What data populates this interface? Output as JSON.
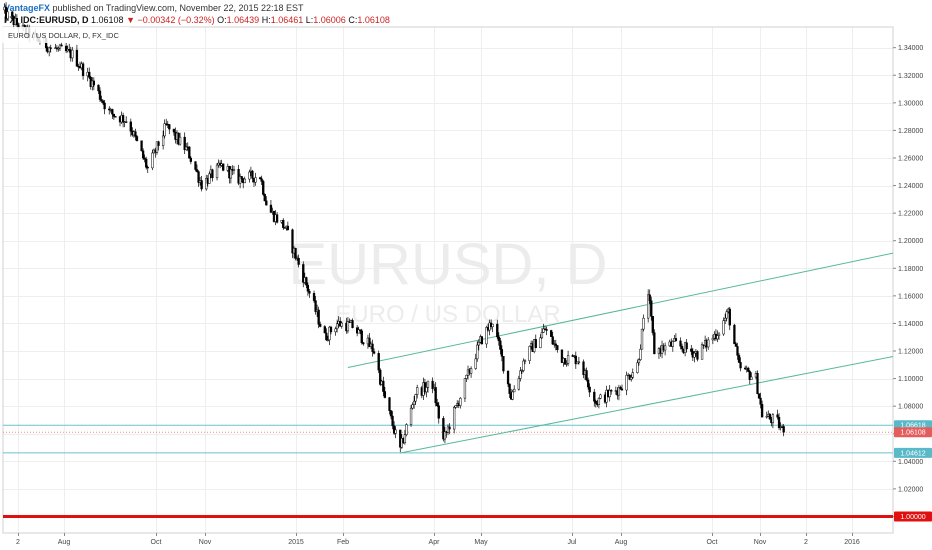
{
  "header": {
    "publisher": "VantageFX",
    "published_text": "published on TradingView.com, November 22, 2015 22:18 EST",
    "symbol": "FX_IDC:EURUSD, D",
    "last": "1.06108",
    "change_arrow": "▼",
    "change": "−0.00342 (−0.32%)",
    "o_label": "O:",
    "o_value": "1.06439",
    "h_label": "H:",
    "h_value": "1.06461",
    "l_label": "L:",
    "l_value": "1.06006",
    "c_label": "C:",
    "c_value": "1.06108"
  },
  "chart_data": {
    "type": "candlestick",
    "title": "EURO / US DOLLAR, D, FX_IDC",
    "watermark": "EURUSD, D",
    "watermark_sub": "EURO / US DOLLAR",
    "ylim": [
      0.988,
      1.355
    ],
    "y_ticks": [
      "1.34000",
      "1.32000",
      "1.30000",
      "1.28000",
      "1.26000",
      "1.24000",
      "1.22000",
      "1.20000",
      "1.18000",
      "1.16000",
      "1.14000",
      "1.12000",
      "1.10000",
      "1.08000",
      "1.06000",
      "1.04000",
      "1.02000",
      "1.00000"
    ],
    "x_labels": [
      "2",
      "Aug",
      "Oct",
      "Nov",
      "2015",
      "Feb",
      "Apr",
      "May",
      "Jul",
      "Aug",
      "Oct",
      "Nov",
      "2",
      "2016"
    ],
    "price_badges": [
      {
        "label": "1.06618",
        "value": 1.06618,
        "color": "#5ab9c8"
      },
      {
        "label": "1.06108",
        "value": 1.06108,
        "color": "#e55c5c"
      },
      {
        "label": "1.04612",
        "value": 1.04612,
        "color": "#5ab9c8"
      },
      {
        "label": "1.00000",
        "value": 1.0,
        "color": "#e01010"
      }
    ],
    "horizontal_lines": [
      {
        "value": 1.06618,
        "color": "#6cc3d0",
        "kind": "support"
      },
      {
        "value": 1.04612,
        "color": "#6cc3d0",
        "kind": "support"
      },
      {
        "value": 1.0,
        "color": "#e01010",
        "kind": "parity"
      }
    ],
    "channel": {
      "upper": [
        {
          "date": "2015-02-10",
          "value": 1.108
        },
        {
          "date": "2016-01-30",
          "value": 1.191
        }
      ],
      "lower": [
        {
          "date": "2015-03-16",
          "value": 1.046
        },
        {
          "date": "2016-01-30",
          "value": 1.116
        }
      ],
      "color": "#58b89a"
    },
    "price_path": [
      {
        "date": "2014-07-01",
        "value": 1.366
      },
      {
        "date": "2014-07-15",
        "value": 1.352
      },
      {
        "date": "2014-08-01",
        "value": 1.34
      },
      {
        "date": "2014-08-15",
        "value": 1.335
      },
      {
        "date": "2014-08-29",
        "value": 1.313
      },
      {
        "date": "2014-09-08",
        "value": 1.293
      },
      {
        "date": "2014-09-20",
        "value": 1.287
      },
      {
        "date": "2014-10-03",
        "value": 1.252
      },
      {
        "date": "2014-10-15",
        "value": 1.283
      },
      {
        "date": "2014-10-29",
        "value": 1.265
      },
      {
        "date": "2014-11-07",
        "value": 1.241
      },
      {
        "date": "2014-11-20",
        "value": 1.254
      },
      {
        "date": "2014-12-01",
        "value": 1.245
      },
      {
        "date": "2014-12-15",
        "value": 1.247
      },
      {
        "date": "2014-12-20",
        "value": 1.223
      },
      {
        "date": "2014-12-31",
        "value": 1.21
      },
      {
        "date": "2015-01-09",
        "value": 1.183
      },
      {
        "date": "2015-01-16",
        "value": 1.162
      },
      {
        "date": "2015-01-26",
        "value": 1.13
      },
      {
        "date": "2015-02-03",
        "value": 1.14
      },
      {
        "date": "2015-02-13",
        "value": 1.138
      },
      {
        "date": "2015-02-27",
        "value": 1.12
      },
      {
        "date": "2015-03-06",
        "value": 1.085
      },
      {
        "date": "2015-03-16",
        "value": 1.048
      },
      {
        "date": "2015-03-26",
        "value": 1.09
      },
      {
        "date": "2015-04-06",
        "value": 1.096
      },
      {
        "date": "2015-04-13",
        "value": 1.055
      },
      {
        "date": "2015-04-24",
        "value": 1.087
      },
      {
        "date": "2015-05-07",
        "value": 1.127
      },
      {
        "date": "2015-05-15",
        "value": 1.142
      },
      {
        "date": "2015-05-27",
        "value": 1.087
      },
      {
        "date": "2015-06-05",
        "value": 1.115
      },
      {
        "date": "2015-06-18",
        "value": 1.136
      },
      {
        "date": "2015-06-29",
        "value": 1.115
      },
      {
        "date": "2015-07-10",
        "value": 1.114
      },
      {
        "date": "2015-07-21",
        "value": 1.083
      },
      {
        "date": "2015-08-05",
        "value": 1.093
      },
      {
        "date": "2015-08-17",
        "value": 1.11
      },
      {
        "date": "2015-08-24",
        "value": 1.163
      },
      {
        "date": "2015-08-28",
        "value": 1.12
      },
      {
        "date": "2015-09-10",
        "value": 1.125
      },
      {
        "date": "2015-09-25",
        "value": 1.118
      },
      {
        "date": "2015-10-09",
        "value": 1.135
      },
      {
        "date": "2015-10-15",
        "value": 1.148
      },
      {
        "date": "2015-10-22",
        "value": 1.108
      },
      {
        "date": "2015-11-02",
        "value": 1.1
      },
      {
        "date": "2015-11-06",
        "value": 1.074
      },
      {
        "date": "2015-11-16",
        "value": 1.068
      },
      {
        "date": "2015-11-20",
        "value": 1.061
      }
    ],
    "grid": true,
    "candle_up_color": "#ffffff",
    "candle_down_color": "#000000"
  }
}
